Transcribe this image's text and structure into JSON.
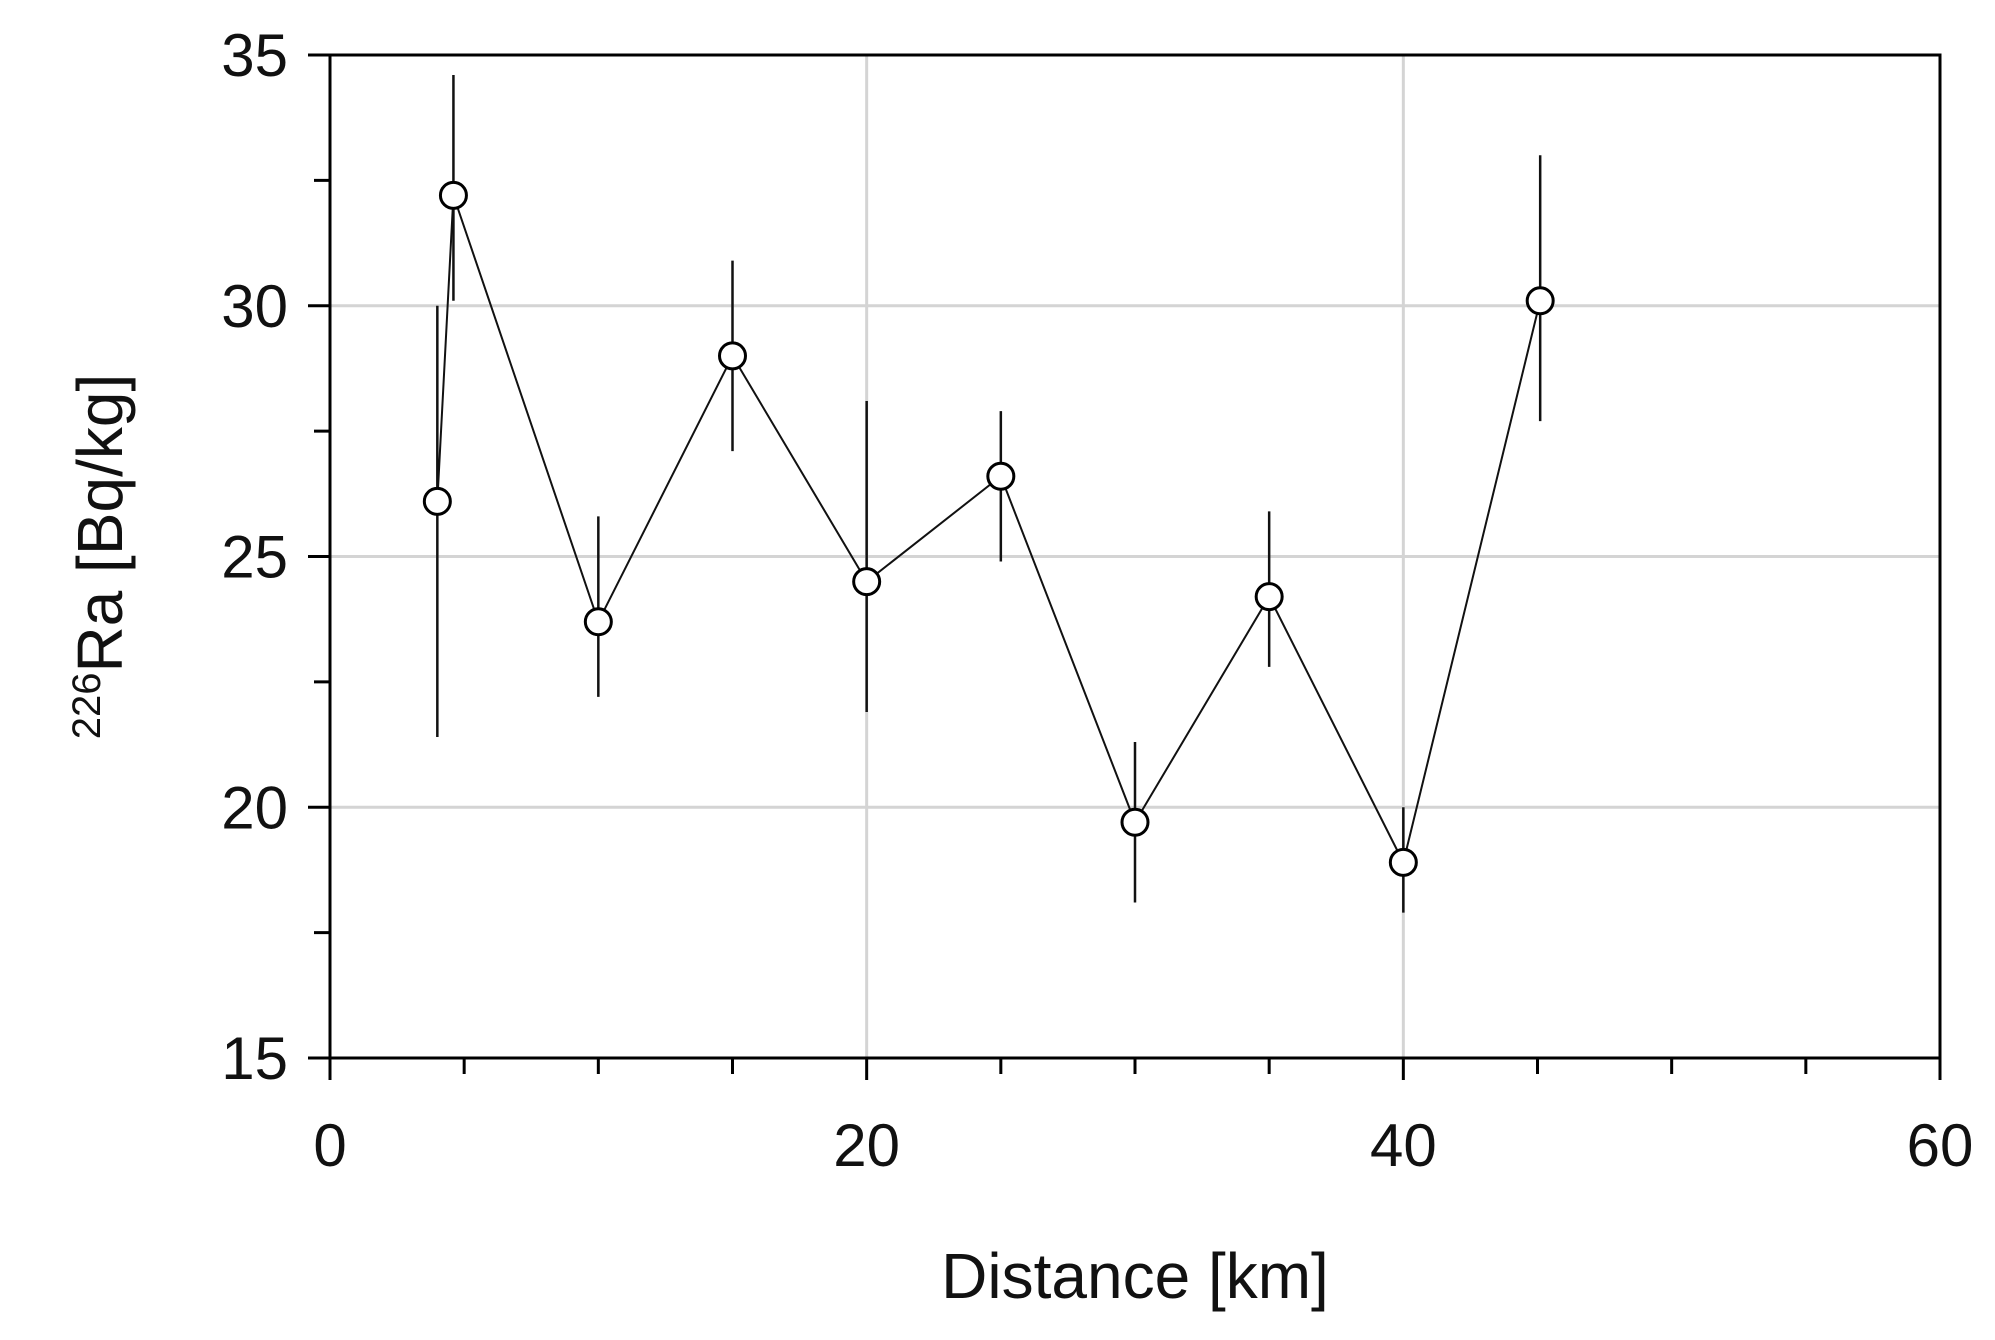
{
  "chart_data": {
    "type": "scatter",
    "title": "",
    "xlabel": "Distance [km]",
    "ylabel": {
      "superscript": "226",
      "rest": "Ra [Bq/kg]"
    },
    "xlim": [
      0,
      60
    ],
    "ylim": [
      15,
      35
    ],
    "x_ticks": [
      0,
      20,
      40,
      60
    ],
    "y_ticks": [
      15,
      20,
      25,
      30,
      35
    ],
    "x_minor_ticks": [
      5,
      10,
      15,
      25,
      30,
      35,
      45,
      50,
      55
    ],
    "y_minor_ticks": [
      17.5,
      22.5,
      27.5,
      32.5
    ],
    "x_gridlines": [
      20,
      40
    ],
    "y_gridlines": [
      20,
      25,
      30
    ],
    "grid": true,
    "legend": "none",
    "connected": true,
    "marker": "open-circle",
    "series": [
      {
        "points": [
          {
            "x": 4,
            "y": 26.1,
            "err_low": 21.4,
            "err_high": 30.0
          },
          {
            "x": 4.6,
            "y": 32.2,
            "err_low": 30.1,
            "err_high": 34.6
          },
          {
            "x": 10,
            "y": 23.7,
            "err_low": 22.2,
            "err_high": 25.8
          },
          {
            "x": 15,
            "y": 29.0,
            "err_low": 27.1,
            "err_high": 30.9
          },
          {
            "x": 20,
            "y": 24.5,
            "err_low": 21.9,
            "err_high": 28.1
          },
          {
            "x": 25,
            "y": 26.6,
            "err_low": 24.9,
            "err_high": 27.9
          },
          {
            "x": 30,
            "y": 19.7,
            "err_low": 18.1,
            "err_high": 21.3
          },
          {
            "x": 35,
            "y": 24.2,
            "err_low": 22.8,
            "err_high": 25.9
          },
          {
            "x": 40,
            "y": 18.9,
            "err_low": 17.9,
            "err_high": 20.0
          },
          {
            "x": 45.1,
            "y": 30.1,
            "err_low": 27.7,
            "err_high": 33.0
          }
        ]
      }
    ]
  }
}
